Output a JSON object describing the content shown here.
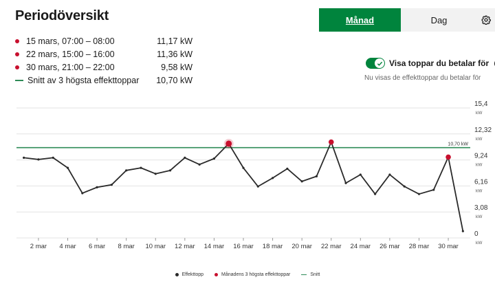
{
  "header": {
    "title": "Periodöversikt"
  },
  "peaks": [
    {
      "label": "15 mars, 07:00 – 08:00",
      "value": "11,17 kW"
    },
    {
      "label": "22 mars, 15:00 – 16:00",
      "value": "11,36 kW"
    },
    {
      "label": "30 mars, 21:00 – 22:00",
      "value": "9,58 kW"
    }
  ],
  "average": {
    "label": "Snitt av 3 högsta effekttoppar",
    "value": "10,70 kW"
  },
  "tabs": {
    "month": "Månad",
    "day": "Dag"
  },
  "toggle": {
    "label": "Visa toppar du betalar för",
    "state": "on",
    "hint": "Nu visas de effekttoppar du betalar för"
  },
  "colors": {
    "accent": "#00843d",
    "peak": "#c8102e",
    "line": "#2a2a2a",
    "average": "#2e8b57"
  },
  "icons": {
    "settings": "gear-icon",
    "info": "info-icon",
    "check": "check-icon"
  },
  "chart_data": {
    "type": "line",
    "x_unit": "day of March",
    "y_ticks": [
      {
        "value": 15.4,
        "label": "15,4"
      },
      {
        "value": 12.32,
        "label": "12,32"
      },
      {
        "value": 9.24,
        "label": "9,24"
      },
      {
        "value": 6.16,
        "label": "6,16"
      },
      {
        "value": 3.08,
        "label": "3,08"
      },
      {
        "value": 0,
        "label": "0"
      }
    ],
    "y_unit": "kW",
    "ylim": [
      0,
      15.4
    ],
    "xlim": [
      0.5,
      31.5
    ],
    "x_ticks": [
      {
        "value": 2,
        "label": "2 mar"
      },
      {
        "value": 4,
        "label": "4 mar"
      },
      {
        "value": 6,
        "label": "6 mar"
      },
      {
        "value": 8,
        "label": "8 mar"
      },
      {
        "value": 10,
        "label": "10 mar"
      },
      {
        "value": 12,
        "label": "12 mar"
      },
      {
        "value": 14,
        "label": "14 mar"
      },
      {
        "value": 16,
        "label": "16 mar"
      },
      {
        "value": 18,
        "label": "18 mar"
      },
      {
        "value": 20,
        "label": "20 mar"
      },
      {
        "value": 22,
        "label": "22 mar"
      },
      {
        "value": 24,
        "label": "24 mar"
      },
      {
        "value": 26,
        "label": "26 mar"
      },
      {
        "value": 28,
        "label": "28 mar"
      },
      {
        "value": 30,
        "label": "30 mar"
      }
    ],
    "series": [
      {
        "name": "Effekttopp",
        "x": [
          1,
          2,
          3,
          4,
          5,
          6,
          7,
          8,
          9,
          10,
          11,
          12,
          13,
          14,
          15,
          16,
          17,
          18,
          19,
          20,
          21,
          22,
          23,
          24,
          25,
          26,
          27,
          28,
          29,
          30,
          31
        ],
        "y": [
          9.5,
          9.3,
          9.5,
          8.3,
          5.3,
          6.0,
          6.3,
          8.0,
          8.3,
          7.6,
          8.0,
          9.5,
          8.7,
          9.4,
          11.17,
          8.3,
          6.1,
          7.1,
          8.2,
          6.7,
          7.3,
          11.36,
          6.5,
          7.5,
          5.2,
          7.5,
          6.1,
          5.2,
          5.7,
          9.58,
          0.8
        ]
      },
      {
        "name": "Månadens 3 högsta effekttoppar",
        "x": [
          15,
          22,
          30
        ],
        "y": [
          11.17,
          11.36,
          9.58
        ]
      },
      {
        "name": "Snitt",
        "y": 10.7,
        "label": "10,70 kW"
      }
    ],
    "legend": [
      "Effekttopp",
      "Månadens 3 högsta effekttoppar",
      "Snitt"
    ],
    "legend_position": "bottom",
    "grid": true
  }
}
